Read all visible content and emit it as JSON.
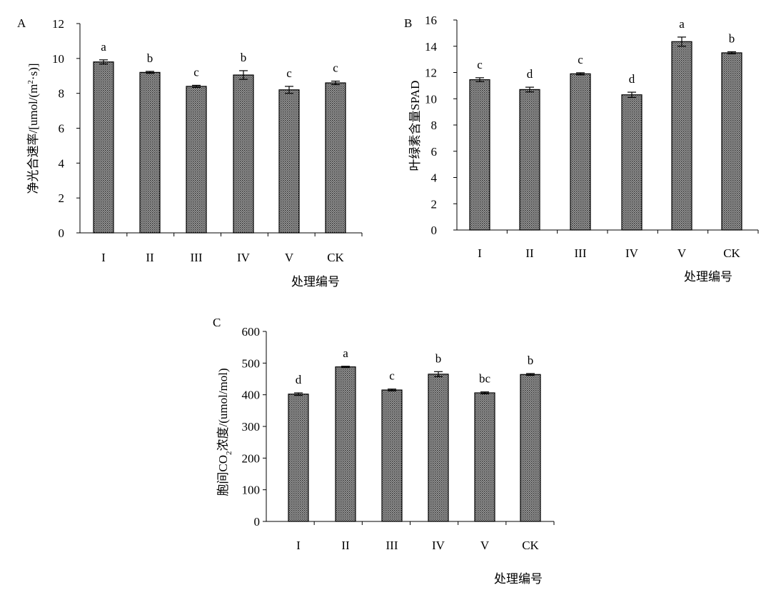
{
  "chart_data": [
    {
      "panel": "A",
      "type": "bar",
      "categories": [
        "I",
        "II",
        "III",
        "IV",
        "V",
        "CK"
      ],
      "values": [
        9.8,
        9.2,
        8.4,
        9.05,
        8.2,
        8.6
      ],
      "errors": [
        0.12,
        0.06,
        0.06,
        0.25,
        0.2,
        0.1
      ],
      "letters": [
        "a",
        "b",
        "c",
        "b",
        "c",
        "c"
      ],
      "ylim": [
        0,
        12
      ],
      "yticks": [
        0,
        2,
        4,
        6,
        8,
        10,
        12
      ],
      "ylabel_pre": "净光合速率/[umol/(m",
      "ylabel_sup": "2",
      "ylabel_post": "·s)]",
      "xlabel": "处理编号"
    },
    {
      "panel": "B",
      "type": "bar",
      "categories": [
        "I",
        "II",
        "III",
        "IV",
        "V",
        "CK"
      ],
      "values": [
        11.45,
        10.7,
        11.9,
        10.3,
        14.35,
        13.5
      ],
      "errors": [
        0.15,
        0.18,
        0.08,
        0.2,
        0.35,
        0.08
      ],
      "letters": [
        "c",
        "d",
        "c",
        "d",
        "a",
        "b"
      ],
      "ylim": [
        0,
        16
      ],
      "yticks": [
        0,
        2,
        4,
        6,
        8,
        10,
        12,
        14,
        16
      ],
      "ylabel": "叶绿素含量SPAD",
      "xlabel": "处理编号"
    },
    {
      "panel": "C",
      "type": "bar",
      "categories": [
        "I",
        "II",
        "III",
        "IV",
        "V",
        "CK"
      ],
      "values": [
        402,
        488,
        415,
        465,
        406,
        464
      ],
      "errors": [
        4,
        2,
        3,
        8,
        3,
        3
      ],
      "letters": [
        "d",
        "a",
        "c",
        "b",
        "bc",
        "b"
      ],
      "ylim": [
        0,
        600
      ],
      "yticks": [
        0,
        100,
        200,
        300,
        400,
        500,
        600
      ],
      "ylabel_pre": "胞间CO",
      "ylabel_sub": "2",
      "ylabel_post": "浓度/(umol/mol)",
      "xlabel": "处理编号"
    }
  ]
}
